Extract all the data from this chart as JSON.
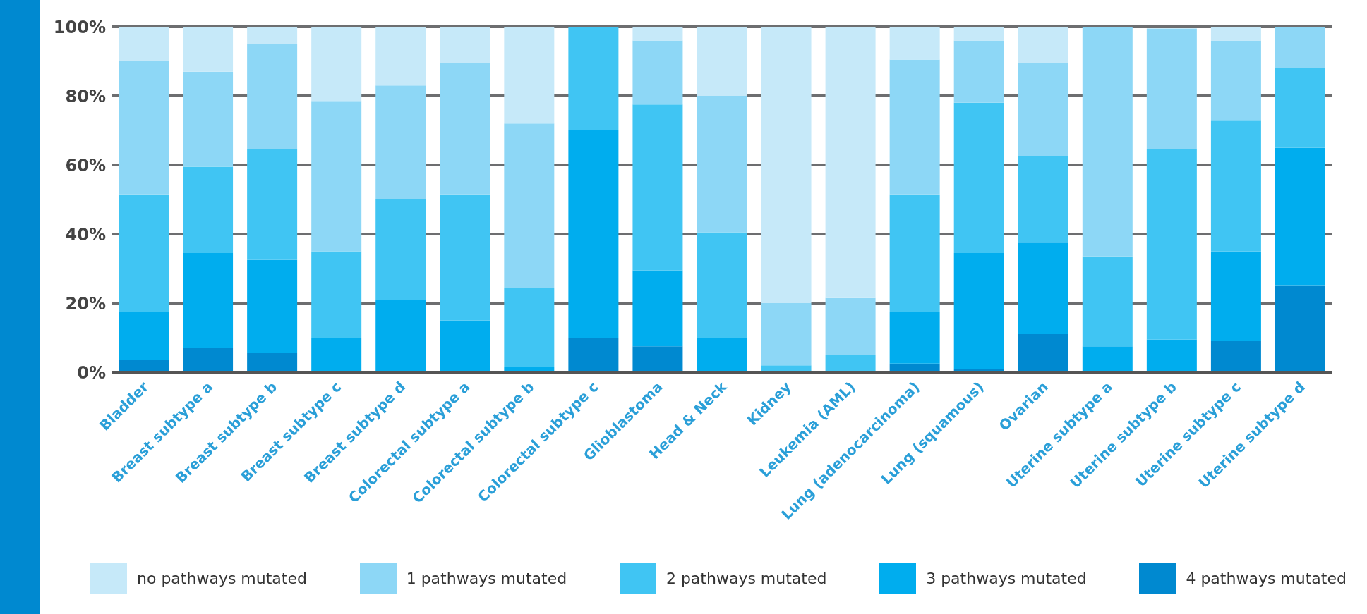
{
  "chart_data": {
    "type": "bar",
    "stacked": true,
    "categories": [
      "Bladder",
      "Breast subtype a",
      "Breast subtype b",
      "Breast subtype c",
      "Breast subtype d",
      "Colorectal subtype a",
      "Colorectal subtype b",
      "Colorectal subtype c",
      "Glioblastoma",
      "Head & Neck",
      "Kidney",
      "Leukemia (AML)",
      "Lung (adenocarcinoma)",
      "Lung (squamous)",
      "Ovarian",
      "Uterine subtype a",
      "Uterine subtype b",
      "Uterine subtype c",
      "Uterine subtype d"
    ],
    "series": [
      {
        "name": "4 pathways mutated",
        "color": "#0089d0",
        "values": [
          3.5,
          7,
          5.5,
          0,
          0,
          0,
          0,
          10,
          7.5,
          0,
          0,
          0,
          2.5,
          1,
          11,
          0,
          0,
          9,
          25
        ]
      },
      {
        "name": "3 pathways mutated",
        "color": "#00adee",
        "values": [
          14,
          27.5,
          27,
          10,
          21,
          15,
          1.5,
          60,
          22,
          10,
          0,
          0,
          15,
          33.5,
          26.5,
          7.5,
          9.5,
          26,
          40
        ]
      },
      {
        "name": "2 pathways mutated",
        "color": "#40c5f3",
        "values": [
          34,
          25,
          32,
          25,
          29,
          36.5,
          23,
          30,
          48,
          30.5,
          2,
          5,
          34,
          43.5,
          25,
          26,
          55,
          38,
          23
        ]
      },
      {
        "name": "1 pathways mutated",
        "color": "#8dd7f6",
        "values": [
          38.5,
          27.5,
          30.5,
          43.5,
          33,
          38,
          47.5,
          0,
          18.5,
          39.5,
          18,
          16.5,
          39,
          18,
          27,
          66.5,
          35,
          23,
          12
        ]
      },
      {
        "name": "no pathways mutated",
        "color": "#c6e9f9",
        "values": [
          10,
          13,
          5,
          21.5,
          17,
          10.5,
          28,
          0,
          4,
          20,
          80,
          78.5,
          9.5,
          4,
          10.5,
          0,
          0,
          4,
          0
        ]
      }
    ],
    "ylim": [
      0,
      100
    ],
    "yticks": [
      {
        "value": 0,
        "label": "0%"
      },
      {
        "value": 20,
        "label": "20%"
      },
      {
        "value": 40,
        "label": "40%"
      },
      {
        "value": 60,
        "label": "60%"
      },
      {
        "value": 80,
        "label": "80%"
      },
      {
        "value": 100,
        "label": "100%"
      }
    ],
    "grid": "y",
    "legend": "bottom"
  }
}
